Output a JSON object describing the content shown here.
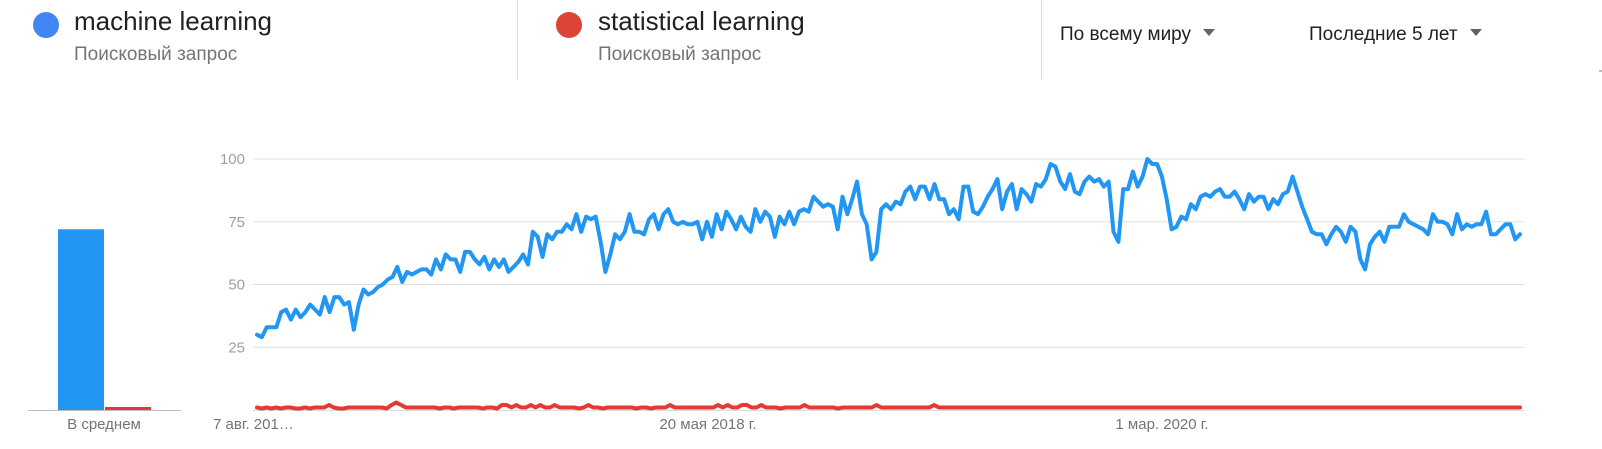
{
  "terms": [
    {
      "name": "machine learning",
      "subtitle": "Поисковый запрос",
      "color": "#4285f4"
    },
    {
      "name": "statistical learning",
      "subtitle": "Поисковый запрос",
      "color": "#db4437"
    }
  ],
  "filters": {
    "region": "По всему миру",
    "period": "Последние 5 лет"
  },
  "chart_data": {
    "type": "line",
    "y_ticks": [
      "25",
      "50",
      "75",
      "100"
    ],
    "ylim": [
      0,
      100
    ],
    "grid": true,
    "x_tick_labels": [
      "7 авг. 201…",
      "20 мая 2018 г.",
      "1 мар. 2020 г."
    ],
    "average": {
      "label": "В среднем",
      "values": [
        72,
        1
      ]
    },
    "series": [
      {
        "name": "machine learning",
        "color": "#2196f3",
        "values": [
          30,
          29,
          33,
          33,
          33,
          39,
          40,
          36,
          40,
          37,
          39,
          42,
          40,
          38,
          45,
          39,
          45,
          45,
          42,
          43,
          32,
          42,
          48,
          46,
          47,
          49,
          50,
          52,
          53,
          57,
          51,
          55,
          54,
          55,
          56,
          56,
          54,
          60,
          56,
          62,
          60,
          60,
          55,
          63,
          63,
          60,
          58,
          61,
          56,
          60,
          57,
          60,
          55,
          57,
          59,
          62,
          58,
          71,
          69,
          61,
          70,
          68,
          71,
          71,
          74,
          72,
          78,
          71,
          77,
          76,
          77,
          67,
          55,
          62,
          70,
          68,
          71,
          78,
          71,
          71,
          70,
          76,
          78,
          72,
          78,
          80,
          75,
          74,
          75,
          74,
          74,
          75,
          68,
          75,
          69,
          78,
          72,
          79,
          76,
          72,
          77,
          73,
          71,
          80,
          75,
          79,
          77,
          69,
          77,
          74,
          79,
          74,
          79,
          80,
          79,
          85,
          83,
          81,
          82,
          81,
          72,
          85,
          78,
          84,
          91,
          78,
          74,
          60,
          63,
          80,
          82,
          80,
          83,
          82,
          87,
          89,
          84,
          89,
          89,
          84,
          90,
          84,
          84,
          78,
          80,
          76,
          89,
          89,
          79,
          78,
          81,
          85,
          88,
          92,
          80,
          87,
          90,
          80,
          88,
          86,
          83,
          90,
          89,
          92,
          98,
          97,
          91,
          88,
          94,
          87,
          86,
          91,
          93,
          91,
          92,
          89,
          91,
          71,
          67,
          88,
          88,
          95,
          89,
          93,
          100,
          98,
          98,
          93,
          84,
          72,
          73,
          77,
          76,
          82,
          80,
          85,
          86,
          85,
          87,
          88,
          85,
          85,
          87,
          84,
          80,
          86,
          83,
          85,
          85,
          80,
          84,
          82,
          86,
          87,
          93,
          87,
          81,
          76,
          71,
          70,
          70,
          66,
          70,
          73,
          71,
          67,
          73,
          71,
          60,
          56,
          66,
          69,
          71,
          67,
          73,
          73,
          73,
          78,
          75,
          74,
          73,
          72,
          70,
          78,
          75,
          75,
          74,
          70,
          78,
          72,
          74,
          73,
          74,
          74,
          79,
          70,
          70,
          72,
          74,
          74,
          68,
          70
        ],
        "_sanity": "ok"
      },
      {
        "name": "statistical learning",
        "color": "#e53935",
        "values": [
          1,
          0,
          1,
          0,
          1,
          0,
          1,
          1,
          0,
          0,
          1,
          0,
          1,
          1,
          1,
          2,
          1,
          0,
          0,
          1,
          1,
          1,
          1,
          1,
          1,
          1,
          1,
          0,
          2,
          3,
          2,
          1,
          1,
          1,
          1,
          1,
          1,
          1,
          0,
          1,
          1,
          0,
          1,
          1,
          1,
          1,
          1,
          0,
          1,
          1,
          0,
          2,
          2,
          1,
          2,
          1,
          1,
          2,
          1,
          2,
          1,
          1,
          2,
          1,
          1,
          1,
          1,
          0,
          1,
          2,
          1,
          1,
          0,
          1,
          1,
          1,
          1,
          1,
          1,
          0,
          1,
          1,
          0,
          1,
          1,
          1,
          2,
          1,
          1,
          1,
          1,
          1,
          1,
          1,
          1,
          1,
          2,
          1,
          2,
          1,
          1,
          2,
          2,
          1,
          1,
          2,
          1,
          1,
          1,
          0,
          1,
          1,
          1,
          1,
          2,
          1,
          1,
          1,
          1,
          1,
          1,
          0,
          1,
          1,
          1,
          1,
          1,
          1,
          1,
          2,
          1,
          1,
          1,
          1,
          1,
          1,
          1,
          1,
          1,
          1,
          1,
          2,
          1,
          1,
          1,
          1,
          1,
          1,
          1,
          1,
          1,
          1,
          1,
          1,
          1,
          1,
          1,
          1,
          1,
          1,
          1,
          1,
          1,
          1,
          1,
          1,
          1,
          1,
          1,
          1,
          1,
          1,
          1,
          1,
          1,
          1,
          1,
          1,
          1,
          1,
          1,
          1,
          1,
          1,
          1,
          1,
          1,
          1,
          1,
          1,
          1,
          1,
          1,
          1,
          1,
          1,
          1,
          1,
          1,
          1,
          1,
          1,
          1,
          1,
          1,
          1,
          1,
          1,
          1,
          1,
          1,
          1,
          1,
          1,
          1,
          1,
          1,
          1,
          1,
          1,
          1,
          1,
          1,
          1,
          1,
          1,
          1,
          1,
          1,
          1,
          1,
          1,
          1,
          1,
          1,
          1,
          1,
          1,
          1,
          1,
          1,
          1,
          1,
          1,
          1,
          1,
          1,
          1,
          1,
          1,
          1,
          1,
          1,
          1,
          1,
          1,
          1,
          1,
          1,
          1,
          1,
          1,
          1,
          1
        ]
      }
    ]
  }
}
